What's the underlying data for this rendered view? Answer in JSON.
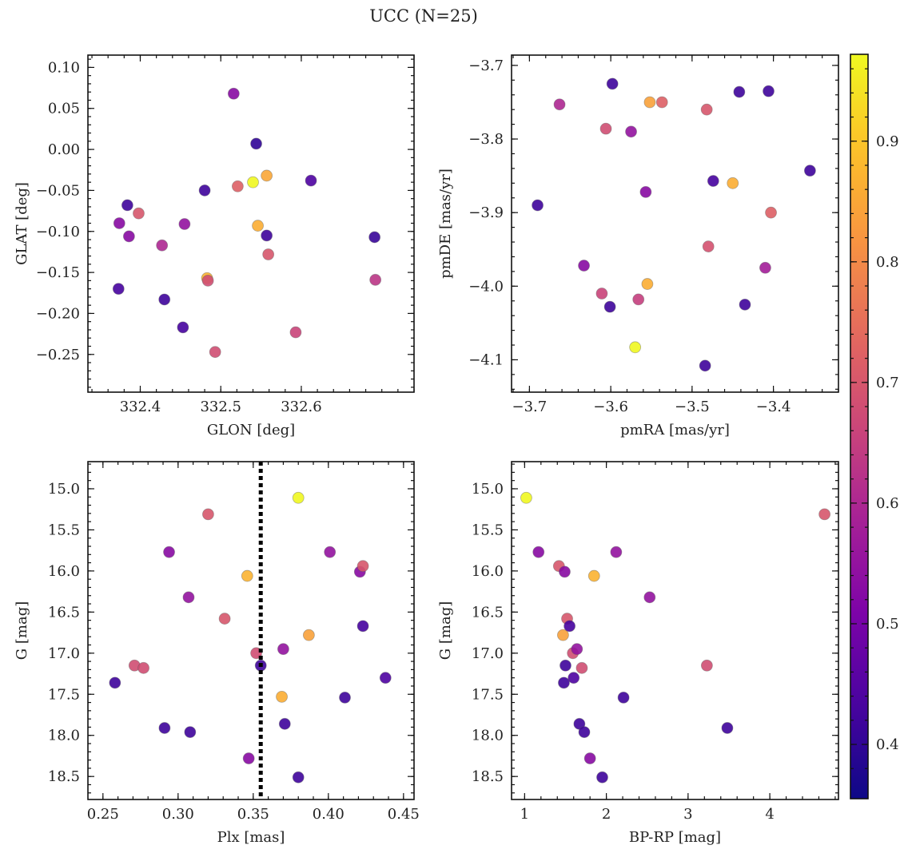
{
  "figure_title": "UCC (N=25)",
  "colorbar": {
    "min": 0.355,
    "max": 0.972,
    "ticks": [
      0.4,
      0.5,
      0.6,
      0.7,
      0.8,
      0.9
    ],
    "tick_labels": [
      "0.4",
      "0.5",
      "0.6",
      "0.7",
      "0.8",
      "0.9"
    ]
  },
  "chart_data": [
    {
      "type": "scatter",
      "name": "glon-glat",
      "xlabel": "GLON [deg]",
      "ylabel": "GLAT [deg]",
      "xlim": [
        332.335,
        332.74
      ],
      "ylim": [
        -0.296,
        0.115
      ],
      "xticks": [
        332.4,
        332.5,
        332.6
      ],
      "xtick_labels": [
        "332.4",
        "332.5",
        "332.6"
      ],
      "yticks": [
        -0.25,
        -0.2,
        -0.15,
        -0.1,
        -0.05,
        0.0,
        0.05,
        0.1
      ],
      "ytick_labels": [
        "−0.25",
        "−0.20",
        "−0.15",
        "−0.10",
        "−0.05",
        "0.00",
        "0.05",
        "0.10"
      ],
      "points": [
        {
          "x": 332.373,
          "y": -0.17,
          "c": 0.43
        },
        {
          "x": 332.374,
          "y": -0.09,
          "c": 0.53
        },
        {
          "x": 332.384,
          "y": -0.068,
          "c": 0.42
        },
        {
          "x": 332.386,
          "y": -0.106,
          "c": 0.53
        },
        {
          "x": 332.398,
          "y": -0.078,
          "c": 0.7
        },
        {
          "x": 332.427,
          "y": -0.117,
          "c": 0.6
        },
        {
          "x": 332.43,
          "y": -0.183,
          "c": 0.42
        },
        {
          "x": 332.453,
          "y": -0.217,
          "c": 0.43
        },
        {
          "x": 332.455,
          "y": -0.091,
          "c": 0.55
        },
        {
          "x": 332.48,
          "y": -0.05,
          "c": 0.42
        },
        {
          "x": 332.483,
          "y": -0.157,
          "c": 0.87
        },
        {
          "x": 332.484,
          "y": -0.16,
          "c": 0.68
        },
        {
          "x": 332.493,
          "y": -0.247,
          "c": 0.68
        },
        {
          "x": 332.516,
          "y": 0.068,
          "c": 0.53
        },
        {
          "x": 332.521,
          "y": -0.045,
          "c": 0.72
        },
        {
          "x": 332.54,
          "y": -0.04,
          "c": 0.97
        },
        {
          "x": 332.544,
          "y": 0.007,
          "c": 0.4
        },
        {
          "x": 332.546,
          "y": -0.093,
          "c": 0.86
        },
        {
          "x": 332.557,
          "y": -0.032,
          "c": 0.85
        },
        {
          "x": 332.557,
          "y": -0.105,
          "c": 0.42
        },
        {
          "x": 332.559,
          "y": -0.128,
          "c": 0.7
        },
        {
          "x": 332.593,
          "y": -0.223,
          "c": 0.66
        },
        {
          "x": 332.612,
          "y": -0.038,
          "c": 0.44
        },
        {
          "x": 332.691,
          "y": -0.107,
          "c": 0.41
        },
        {
          "x": 332.692,
          "y": -0.159,
          "c": 0.63
        }
      ]
    },
    {
      "type": "scatter",
      "name": "pmra-pmde",
      "xlabel": "pmRA [mas/yr]",
      "ylabel": "pmDE [mas/yr]",
      "xlim": [
        -3.722,
        -3.32
      ],
      "ylim": [
        -4.144,
        -3.686
      ],
      "xticks": [
        -3.7,
        -3.6,
        -3.5,
        -3.4
      ],
      "xtick_labels": [
        "−3.7",
        "−3.6",
        "−3.5",
        "−3.4"
      ],
      "yticks": [
        -4.1,
        -4.0,
        -3.9,
        -3.8,
        -3.7
      ],
      "ytick_labels": [
        "−4.1",
        "−4.0",
        "−3.9",
        "−3.8",
        "−3.7"
      ],
      "points": [
        {
          "x": -3.69,
          "y": -3.89,
          "c": 0.42
        },
        {
          "x": -3.663,
          "y": -3.753,
          "c": 0.6
        },
        {
          "x": -3.633,
          "y": -3.972,
          "c": 0.53
        },
        {
          "x": -3.611,
          "y": -4.01,
          "c": 0.66
        },
        {
          "x": -3.606,
          "y": -3.786,
          "c": 0.68
        },
        {
          "x": -3.601,
          "y": -4.028,
          "c": 0.42
        },
        {
          "x": -3.598,
          "y": -3.725,
          "c": 0.42
        },
        {
          "x": -3.575,
          "y": -3.79,
          "c": 0.55
        },
        {
          "x": -3.57,
          "y": -4.083,
          "c": 0.97
        },
        {
          "x": -3.566,
          "y": -4.018,
          "c": 0.65
        },
        {
          "x": -3.557,
          "y": -3.872,
          "c": 0.53
        },
        {
          "x": -3.555,
          "y": -3.997,
          "c": 0.86
        },
        {
          "x": -3.552,
          "y": -3.75,
          "c": 0.84
        },
        {
          "x": -3.537,
          "y": -3.75,
          "c": 0.72
        },
        {
          "x": -3.484,
          "y": -4.108,
          "c": 0.42
        },
        {
          "x": -3.482,
          "y": -3.76,
          "c": 0.7
        },
        {
          "x": -3.48,
          "y": -3.946,
          "c": 0.69
        },
        {
          "x": -3.474,
          "y": -3.857,
          "c": 0.43
        },
        {
          "x": -3.45,
          "y": -3.86,
          "c": 0.86
        },
        {
          "x": -3.442,
          "y": -3.736,
          "c": 0.42
        },
        {
          "x": -3.435,
          "y": -4.025,
          "c": 0.42
        },
        {
          "x": -3.41,
          "y": -3.975,
          "c": 0.58
        },
        {
          "x": -3.406,
          "y": -3.735,
          "c": 0.42
        },
        {
          "x": -3.403,
          "y": -3.9,
          "c": 0.72
        },
        {
          "x": -3.355,
          "y": -3.843,
          "c": 0.42
        }
      ]
    },
    {
      "type": "scatter",
      "name": "plx-g",
      "xlabel": "Plx [mas]",
      "ylabel": "G [mag]",
      "xlim": [
        0.24,
        0.457
      ],
      "ylim": [
        18.78,
        14.67
      ],
      "xticks": [
        0.25,
        0.3,
        0.35,
        0.4,
        0.45
      ],
      "xtick_labels": [
        "0.25",
        "0.30",
        "0.35",
        "0.40",
        "0.45"
      ],
      "yticks": [
        15.0,
        15.5,
        16.0,
        16.5,
        17.0,
        17.5,
        18.0,
        18.5
      ],
      "ytick_labels": [
        "15.0",
        "15.5",
        "16.0",
        "16.5",
        "17.0",
        "17.5",
        "18.0",
        "18.5"
      ],
      "vline": 0.355,
      "points": [
        {
          "x": 0.258,
          "y": 17.36,
          "c": 0.42
        },
        {
          "x": 0.271,
          "y": 17.15,
          "c": 0.68
        },
        {
          "x": 0.277,
          "y": 17.18,
          "c": 0.68
        },
        {
          "x": 0.291,
          "y": 17.91,
          "c": 0.42
        },
        {
          "x": 0.294,
          "y": 15.77,
          "c": 0.53
        },
        {
          "x": 0.307,
          "y": 16.32,
          "c": 0.55
        },
        {
          "x": 0.308,
          "y": 17.96,
          "c": 0.42
        },
        {
          "x": 0.32,
          "y": 15.31,
          "c": 0.7
        },
        {
          "x": 0.331,
          "y": 16.58,
          "c": 0.7
        },
        {
          "x": 0.346,
          "y": 16.06,
          "c": 0.87
        },
        {
          "x": 0.347,
          "y": 18.28,
          "c": 0.53
        },
        {
          "x": 0.352,
          "y": 17.0,
          "c": 0.68
        },
        {
          "x": 0.355,
          "y": 17.15,
          "c": 0.42
        },
        {
          "x": 0.369,
          "y": 17.53,
          "c": 0.86
        },
        {
          "x": 0.37,
          "y": 16.95,
          "c": 0.55
        },
        {
          "x": 0.371,
          "y": 17.86,
          "c": 0.42
        },
        {
          "x": 0.38,
          "y": 18.51,
          "c": 0.42
        },
        {
          "x": 0.38,
          "y": 15.11,
          "c": 0.97
        },
        {
          "x": 0.387,
          "y": 16.78,
          "c": 0.84
        },
        {
          "x": 0.401,
          "y": 15.77,
          "c": 0.55
        },
        {
          "x": 0.411,
          "y": 17.54,
          "c": 0.42
        },
        {
          "x": 0.421,
          "y": 16.01,
          "c": 0.53
        },
        {
          "x": 0.423,
          "y": 15.94,
          "c": 0.7
        },
        {
          "x": 0.423,
          "y": 16.67,
          "c": 0.43
        },
        {
          "x": 0.438,
          "y": 17.3,
          "c": 0.44
        }
      ]
    },
    {
      "type": "scatter",
      "name": "bprp-g",
      "xlabel": "BP-RP [mag]",
      "ylabel": "G [mag]",
      "xlim": [
        0.84,
        4.84
      ],
      "ylim": [
        18.78,
        14.67
      ],
      "xticks": [
        1,
        2,
        3,
        4
      ],
      "xtick_labels": [
        "1",
        "2",
        "3",
        "4"
      ],
      "yticks": [
        15.0,
        15.5,
        16.0,
        16.5,
        17.0,
        17.5,
        18.0,
        18.5
      ],
      "ytick_labels": [
        "15.0",
        "15.5",
        "16.0",
        "16.5",
        "17.0",
        "17.5",
        "18.0",
        "18.5"
      ],
      "points": [
        {
          "x": 1.02,
          "y": 15.11,
          "c": 0.97
        },
        {
          "x": 1.17,
          "y": 15.77,
          "c": 0.53
        },
        {
          "x": 1.42,
          "y": 15.94,
          "c": 0.7
        },
        {
          "x": 1.47,
          "y": 16.78,
          "c": 0.84
        },
        {
          "x": 1.48,
          "y": 17.36,
          "c": 0.42
        },
        {
          "x": 1.49,
          "y": 16.01,
          "c": 0.53
        },
        {
          "x": 1.5,
          "y": 17.15,
          "c": 0.42
        },
        {
          "x": 1.52,
          "y": 16.58,
          "c": 0.7
        },
        {
          "x": 1.55,
          "y": 16.67,
          "c": 0.43
        },
        {
          "x": 1.59,
          "y": 17.0,
          "c": 0.68
        },
        {
          "x": 1.6,
          "y": 17.3,
          "c": 0.44
        },
        {
          "x": 1.64,
          "y": 16.95,
          "c": 0.55
        },
        {
          "x": 1.67,
          "y": 17.86,
          "c": 0.42
        },
        {
          "x": 1.7,
          "y": 17.18,
          "c": 0.68
        },
        {
          "x": 1.73,
          "y": 17.96,
          "c": 0.42
        },
        {
          "x": 1.8,
          "y": 18.28,
          "c": 0.53
        },
        {
          "x": 1.85,
          "y": 16.06,
          "c": 0.87
        },
        {
          "x": 1.95,
          "y": 18.51,
          "c": 0.42
        },
        {
          "x": 2.12,
          "y": 15.77,
          "c": 0.55
        },
        {
          "x": 2.21,
          "y": 17.54,
          "c": 0.42
        },
        {
          "x": 2.53,
          "y": 16.32,
          "c": 0.55
        },
        {
          "x": 3.23,
          "y": 17.15,
          "c": 0.68
        },
        {
          "x": 3.48,
          "y": 17.91,
          "c": 0.42
        },
        {
          "x": 4.67,
          "y": 15.31,
          "c": 0.7
        }
      ]
    }
  ]
}
